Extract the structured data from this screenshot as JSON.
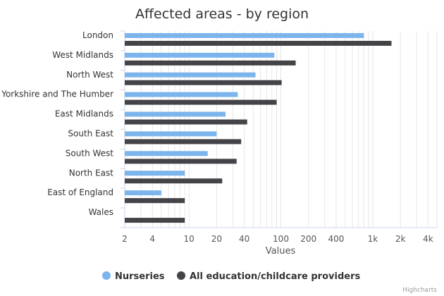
{
  "chart_data": {
    "type": "bar",
    "orientation": "horizontal",
    "title": "Affected areas - by region",
    "xlabel": "Values",
    "ylabel": "",
    "x_scale": "log",
    "xlim": [
      2,
      5000
    ],
    "x_ticks": [
      2,
      4,
      10,
      20,
      40,
      100,
      200,
      400,
      1000,
      2000,
      4000
    ],
    "x_tick_labels": [
      "2",
      "4",
      "10",
      "20",
      "40",
      "100",
      "200",
      "400",
      "1k",
      "2k",
      "4k"
    ],
    "grid": true,
    "legend_position": "bottom",
    "categories": [
      "London",
      "West Midlands",
      "North West",
      "Yorkshire and The Humber",
      "East Midlands",
      "South East",
      "South West",
      "North East",
      "East of England",
      "Wales"
    ],
    "series": [
      {
        "name": "Nurseries",
        "color": "#7cb5ec",
        "values": [
          800,
          85,
          53,
          34,
          25,
          20,
          16,
          9,
          5,
          null
        ]
      },
      {
        "name": "All education/childcare providers",
        "color": "#434348",
        "values": [
          1600,
          145,
          102,
          90,
          43,
          37,
          33,
          23,
          9,
          9
        ]
      }
    ],
    "credits": "Highcharts"
  }
}
